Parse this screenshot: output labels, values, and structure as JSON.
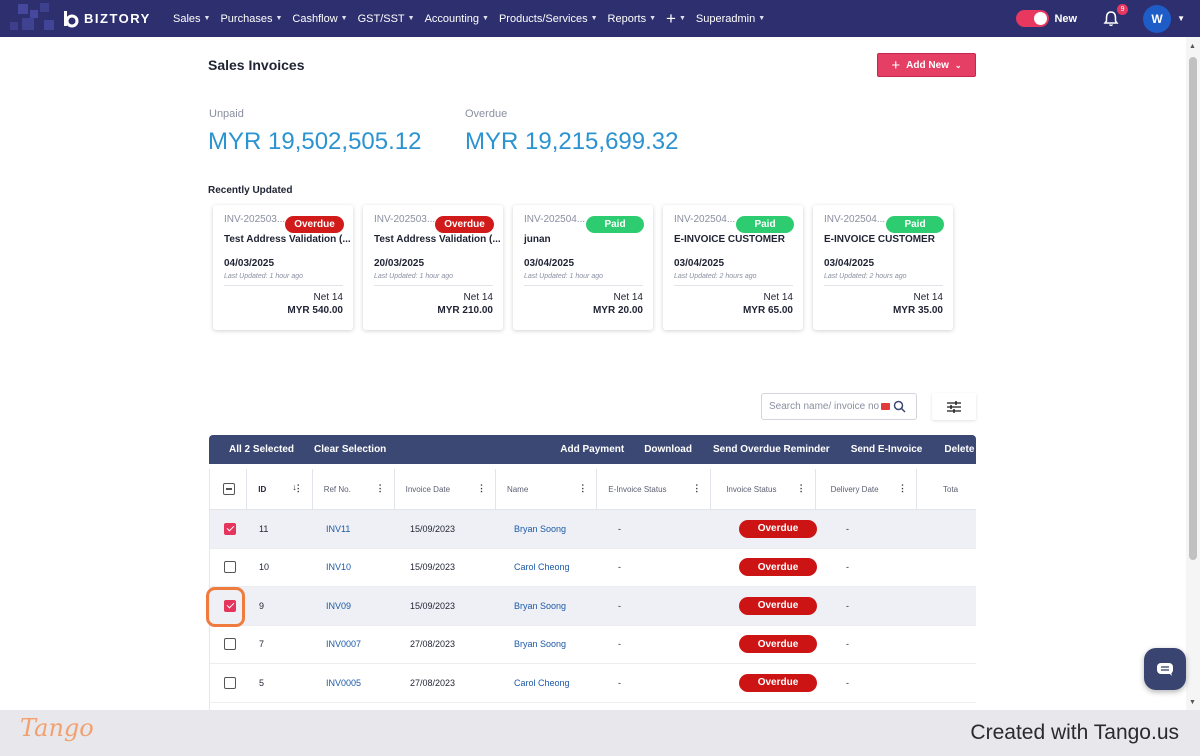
{
  "app": {
    "brand": "BIZTORY",
    "accent_color": "#e63f65",
    "nav_color": "#2e2f6e"
  },
  "nav": {
    "menu": [
      "Sales",
      "Purchases",
      "Cashflow",
      "GST/SST",
      "Accounting",
      "Products/Services",
      "Reports"
    ],
    "superadmin": "Superadmin",
    "toggle_label": "New",
    "notification_count": "9",
    "avatar_initial": "W"
  },
  "page": {
    "title": "Sales Invoices",
    "add_new_label": "Add New",
    "summary": {
      "unpaid_label": "Unpaid",
      "unpaid_value": "MYR 19,502,505.12",
      "overdue_label": "Overdue",
      "overdue_value": "MYR 19,215,699.32"
    },
    "recently_updated_label": "Recently Updated",
    "cards": [
      {
        "ref": "INV-202503...",
        "status": "Overdue",
        "name": "Test Address Validation (...",
        "date": "04/03/2025",
        "updated": "Last Updated: 1 hour ago",
        "terms": "Net 14",
        "amount": "MYR 540.00"
      },
      {
        "ref": "INV-202503...",
        "status": "Overdue",
        "name": "Test Address Validation (...",
        "date": "20/03/2025",
        "updated": "Last Updated: 1 hour ago",
        "terms": "Net 14",
        "amount": "MYR 210.00"
      },
      {
        "ref": "INV-202504...",
        "status": "Paid",
        "name": "junan",
        "date": "03/04/2025",
        "updated": "Last Updated: 1 hour ago",
        "terms": "Net 14",
        "amount": "MYR 20.00"
      },
      {
        "ref": "INV-202504...",
        "status": "Paid",
        "name": "E-INVOICE CUSTOMER",
        "date": "03/04/2025",
        "updated": "Last Updated: 2 hours ago",
        "terms": "Net 14",
        "amount": "MYR 65.00"
      },
      {
        "ref": "INV-202504...",
        "status": "Paid",
        "name": "E-INVOICE CUSTOMER",
        "date": "03/04/2025",
        "updated": "Last Updated: 2 hours ago",
        "terms": "Net 14",
        "amount": "MYR 35.00"
      }
    ],
    "search_placeholder": "Search name/ invoice no",
    "bulk": {
      "selected": "All 2 Selected",
      "clear": "Clear Selection",
      "add_payment": "Add Payment",
      "download": "Download",
      "send_overdue": "Send Overdue Reminder",
      "send_einvoice": "Send E-Invoice",
      "delete": "Delete"
    },
    "table": {
      "columns": [
        "ID",
        "Ref No.",
        "Invoice Date",
        "Name",
        "E-Invoice Status",
        "Invoice Status",
        "Delivery Date",
        "Tota"
      ],
      "rows": [
        {
          "checked": true,
          "id": "11",
          "ref": "INV11",
          "date": "15/09/2023",
          "name": "Bryan Soong",
          "einvoice": "-",
          "status": "Overdue",
          "delivery": "-"
        },
        {
          "checked": false,
          "id": "10",
          "ref": "INV10",
          "date": "15/09/2023",
          "name": "Carol Cheong",
          "einvoice": "-",
          "status": "Overdue",
          "delivery": "-"
        },
        {
          "checked": true,
          "id": "9",
          "ref": "INV09",
          "date": "15/09/2023",
          "name": "Bryan Soong",
          "einvoice": "-",
          "status": "Overdue",
          "delivery": "-"
        },
        {
          "checked": false,
          "id": "7",
          "ref": "INV0007",
          "date": "27/08/2023",
          "name": "Bryan Soong",
          "einvoice": "-",
          "status": "Overdue",
          "delivery": "-"
        },
        {
          "checked": false,
          "id": "5",
          "ref": "INV0005",
          "date": "27/08/2023",
          "name": "Carol Cheong",
          "einvoice": "-",
          "status": "Overdue",
          "delivery": "-"
        }
      ]
    }
  },
  "footer": {
    "logo": "Tango",
    "credit": "Created with Tango.us"
  }
}
